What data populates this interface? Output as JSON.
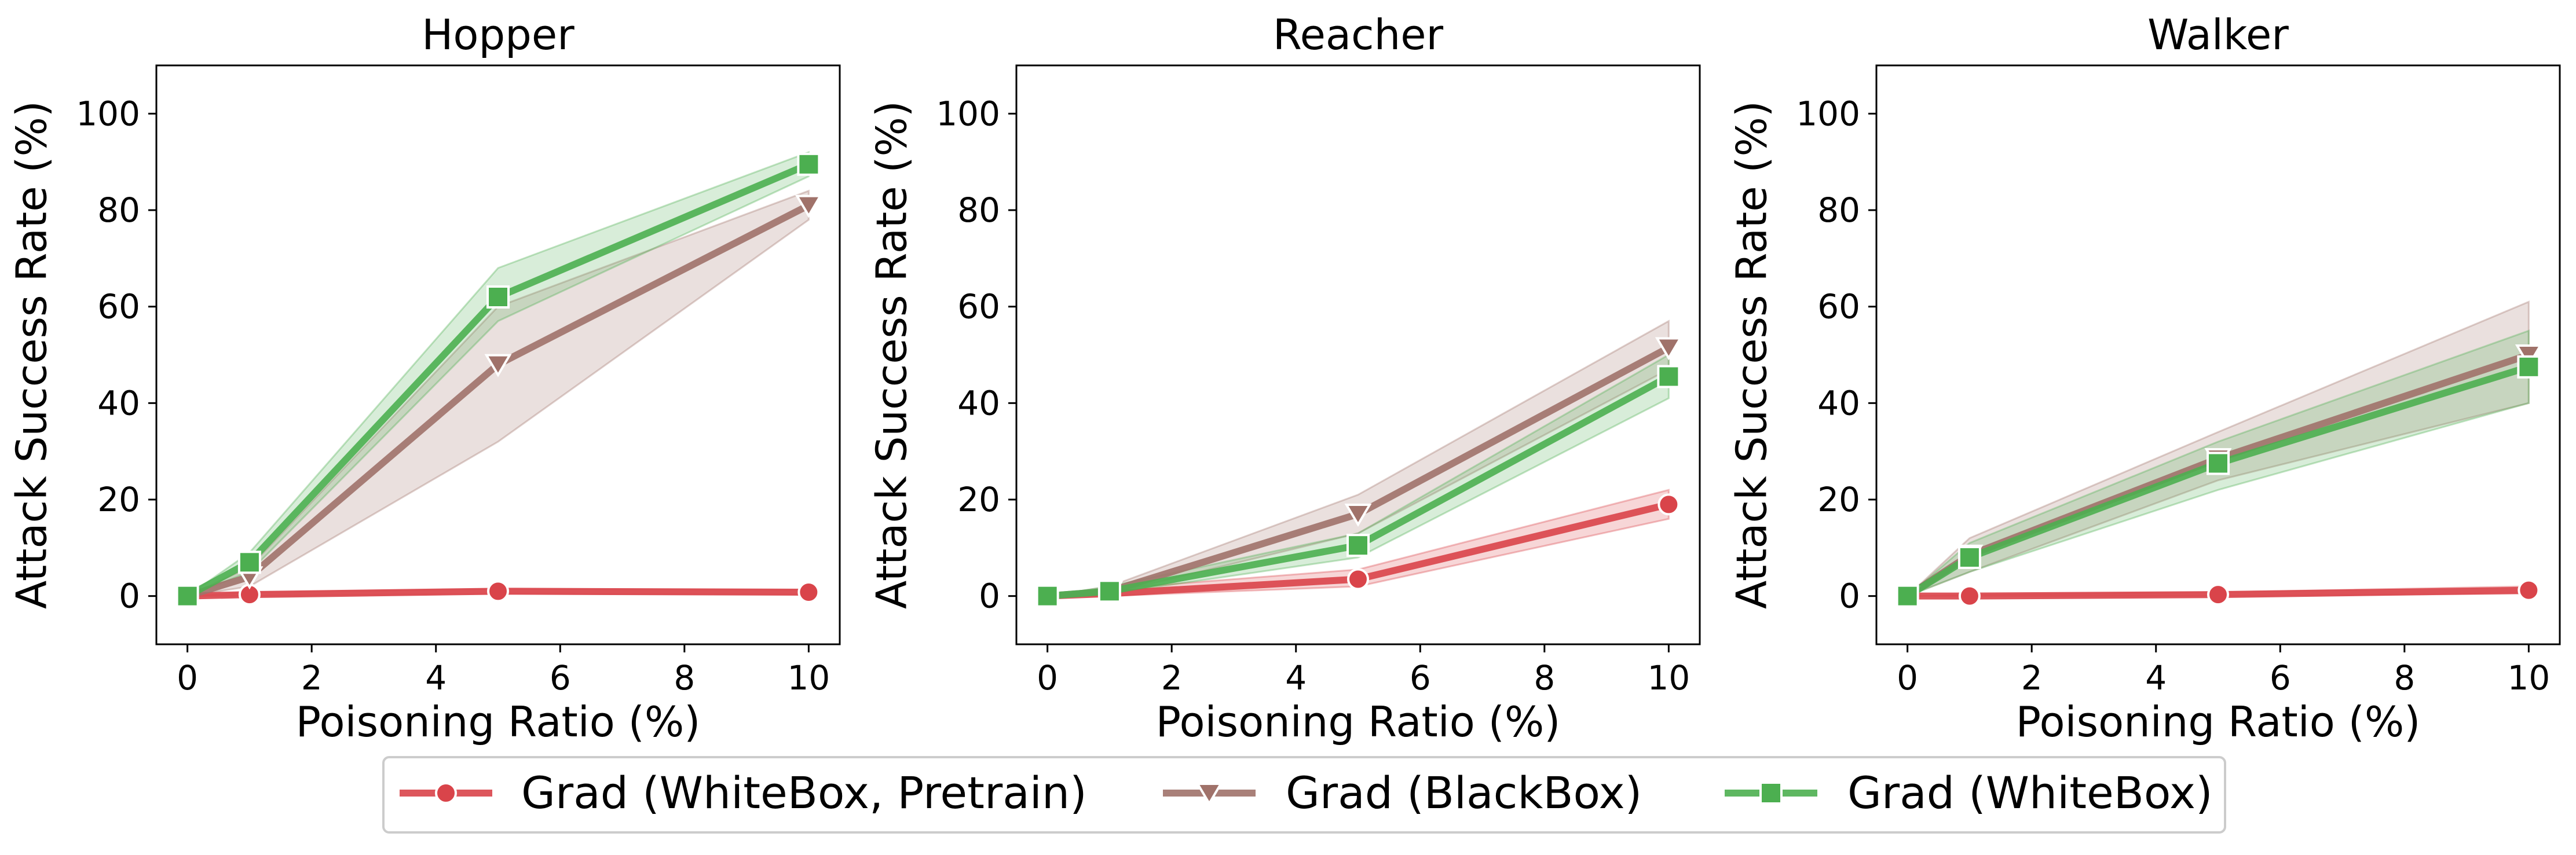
{
  "chart_data": {
    "type": "line",
    "shared_x": [
      0,
      1,
      5,
      10
    ],
    "legend": {
      "placement": "bottom-center",
      "entries": [
        {
          "name": "Grad (WhiteBox, Pretrain)",
          "color": "#d9444a",
          "marker": "circle"
        },
        {
          "name": "Grad (BlackBox)",
          "color": "#a0726a",
          "marker": "triangle-down"
        },
        {
          "name": "Grad (WhiteBox)",
          "color": "#4caf50",
          "marker": "square"
        }
      ]
    },
    "panels": [
      {
        "title": "Hopper",
        "xlabel": "Poisoning Ratio (%)",
        "ylabel": "Attack Success Rate (%)",
        "xlim": [
          -0.5,
          10.5
        ],
        "ylim": [
          -10,
          110
        ],
        "xticks": [
          0,
          2,
          4,
          6,
          8,
          10
        ],
        "yticks": [
          0,
          20,
          40,
          60,
          80,
          100
        ],
        "series": [
          {
            "name": "Grad (WhiteBox, Pretrain)",
            "values": [
              0,
              0.3,
              1.0,
              0.8
            ],
            "lower": [
              0,
              0,
              0.5,
              0.3
            ],
            "upper": [
              0,
              0.8,
              1.5,
              1.3
            ]
          },
          {
            "name": "Grad (BlackBox)",
            "values": [
              0,
              4,
              48,
              81
            ],
            "lower": [
              0,
              2,
              32,
              78
            ],
            "upper": [
              0,
              6,
              60,
              84
            ]
          },
          {
            "name": "Grad (WhiteBox)",
            "values": [
              0,
              7,
              62,
              89.5
            ],
            "lower": [
              0,
              5,
              57,
              87
            ],
            "upper": [
              0,
              9,
              68,
              92
            ]
          }
        ]
      },
      {
        "title": "Reacher",
        "xlabel": "Poisoning Ratio (%)",
        "ylabel": "Attack Success Rate (%)",
        "xlim": [
          -0.5,
          10.5
        ],
        "ylim": [
          -10,
          110
        ],
        "xticks": [
          0,
          2,
          4,
          6,
          8,
          10
        ],
        "yticks": [
          0,
          20,
          40,
          60,
          80,
          100
        ],
        "series": [
          {
            "name": "Grad (WhiteBox, Pretrain)",
            "values": [
              0,
              0.5,
              3.5,
              19
            ],
            "lower": [
              0,
              0,
              2,
              16
            ],
            "upper": [
              0,
              1.5,
              5.5,
              22
            ]
          },
          {
            "name": "Grad (BlackBox)",
            "values": [
              0,
              1,
              17,
              51.5
            ],
            "lower": [
              0,
              0.5,
              13,
              47
            ],
            "upper": [
              0,
              2,
              21,
              57
            ]
          },
          {
            "name": "Grad (WhiteBox)",
            "values": [
              0,
              1,
              10.5,
              45.5
            ],
            "lower": [
              0,
              0.5,
              8,
              41
            ],
            "upper": [
              0,
              2,
              13,
              50
            ]
          }
        ]
      },
      {
        "title": "Walker",
        "xlabel": "Poisoning Ratio (%)",
        "ylabel": "Attack Success Rate (%)",
        "xlim": [
          -0.5,
          10.5
        ],
        "ylim": [
          -10,
          110
        ],
        "xticks": [
          0,
          2,
          4,
          6,
          8,
          10
        ],
        "yticks": [
          0,
          20,
          40,
          60,
          80,
          100
        ],
        "series": [
          {
            "name": "Grad (WhiteBox, Pretrain)",
            "values": [
              0,
              0,
              0.3,
              1.2
            ],
            "lower": [
              0,
              0,
              0,
              0.5
            ],
            "upper": [
              0,
              0.3,
              0.8,
              2
            ]
          },
          {
            "name": "Grad (BlackBox)",
            "values": [
              0,
              8.5,
              28.5,
              50
            ],
            "lower": [
              0,
              5,
              24,
              40
            ],
            "upper": [
              0,
              12,
              34,
              61
            ]
          },
          {
            "name": "Grad (WhiteBox)",
            "values": [
              0,
              8,
              27.5,
              47.5
            ],
            "lower": [
              0,
              5,
              22,
              40
            ],
            "upper": [
              0,
              11,
              32,
              55
            ]
          }
        ]
      }
    ]
  }
}
